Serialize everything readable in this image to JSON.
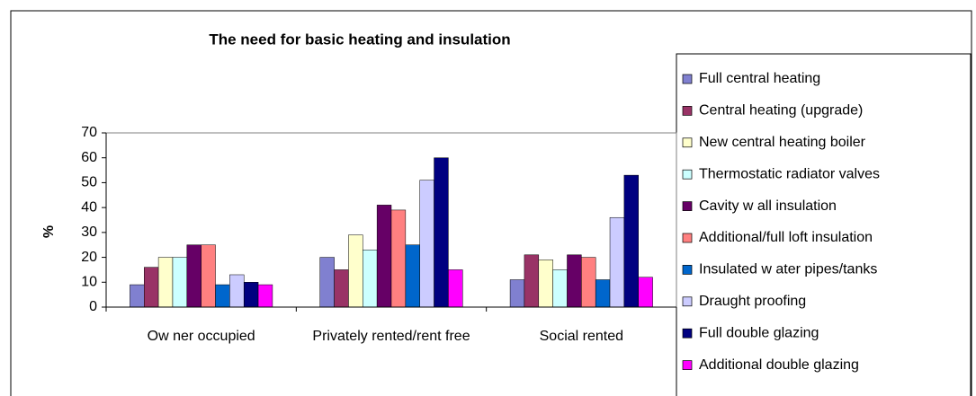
{
  "chart_data": {
    "type": "bar",
    "title": "The need for basic heating and insulation",
    "y_label": "%",
    "categories": [
      "Ow ner occupied",
      "Privately rented/rent free",
      "Social rented"
    ],
    "series": [
      {
        "name": "Full central heating",
        "color": "#8080d0",
        "values": [
          9,
          20,
          11
        ]
      },
      {
        "name": "Central heating (upgrade)",
        "color": "#993366",
        "values": [
          16,
          15,
          21
        ]
      },
      {
        "name": "New  central heating boiler",
        "color": "#ffffcc",
        "values": [
          20,
          29,
          19
        ]
      },
      {
        "name": "Thermostatic radiator valves",
        "color": "#ccffff",
        "values": [
          20,
          23,
          15
        ]
      },
      {
        "name": "Cavity w all insulation",
        "color": "#660066",
        "values": [
          25,
          41,
          21
        ]
      },
      {
        "name": "Additional/full loft insulation",
        "color": "#ff8080",
        "values": [
          25,
          39,
          20
        ]
      },
      {
        "name": "Insulated w ater pipes/tanks",
        "color": "#0066cc",
        "values": [
          9,
          25,
          11
        ]
      },
      {
        "name": "Draught proofing",
        "color": "#ccccff",
        "values": [
          13,
          51,
          36
        ]
      },
      {
        "name": "Full double glazing",
        "color": "#000080",
        "values": [
          10,
          60,
          53
        ]
      },
      {
        "name": "Additional double glazing",
        "color": "#ff00ff",
        "values": [
          9,
          15,
          12
        ]
      }
    ],
    "ylim": [
      0,
      70
    ],
    "yticks": [
      0,
      10,
      20,
      30,
      40,
      50,
      60,
      70
    ],
    "grid": false,
    "legend": "right"
  }
}
